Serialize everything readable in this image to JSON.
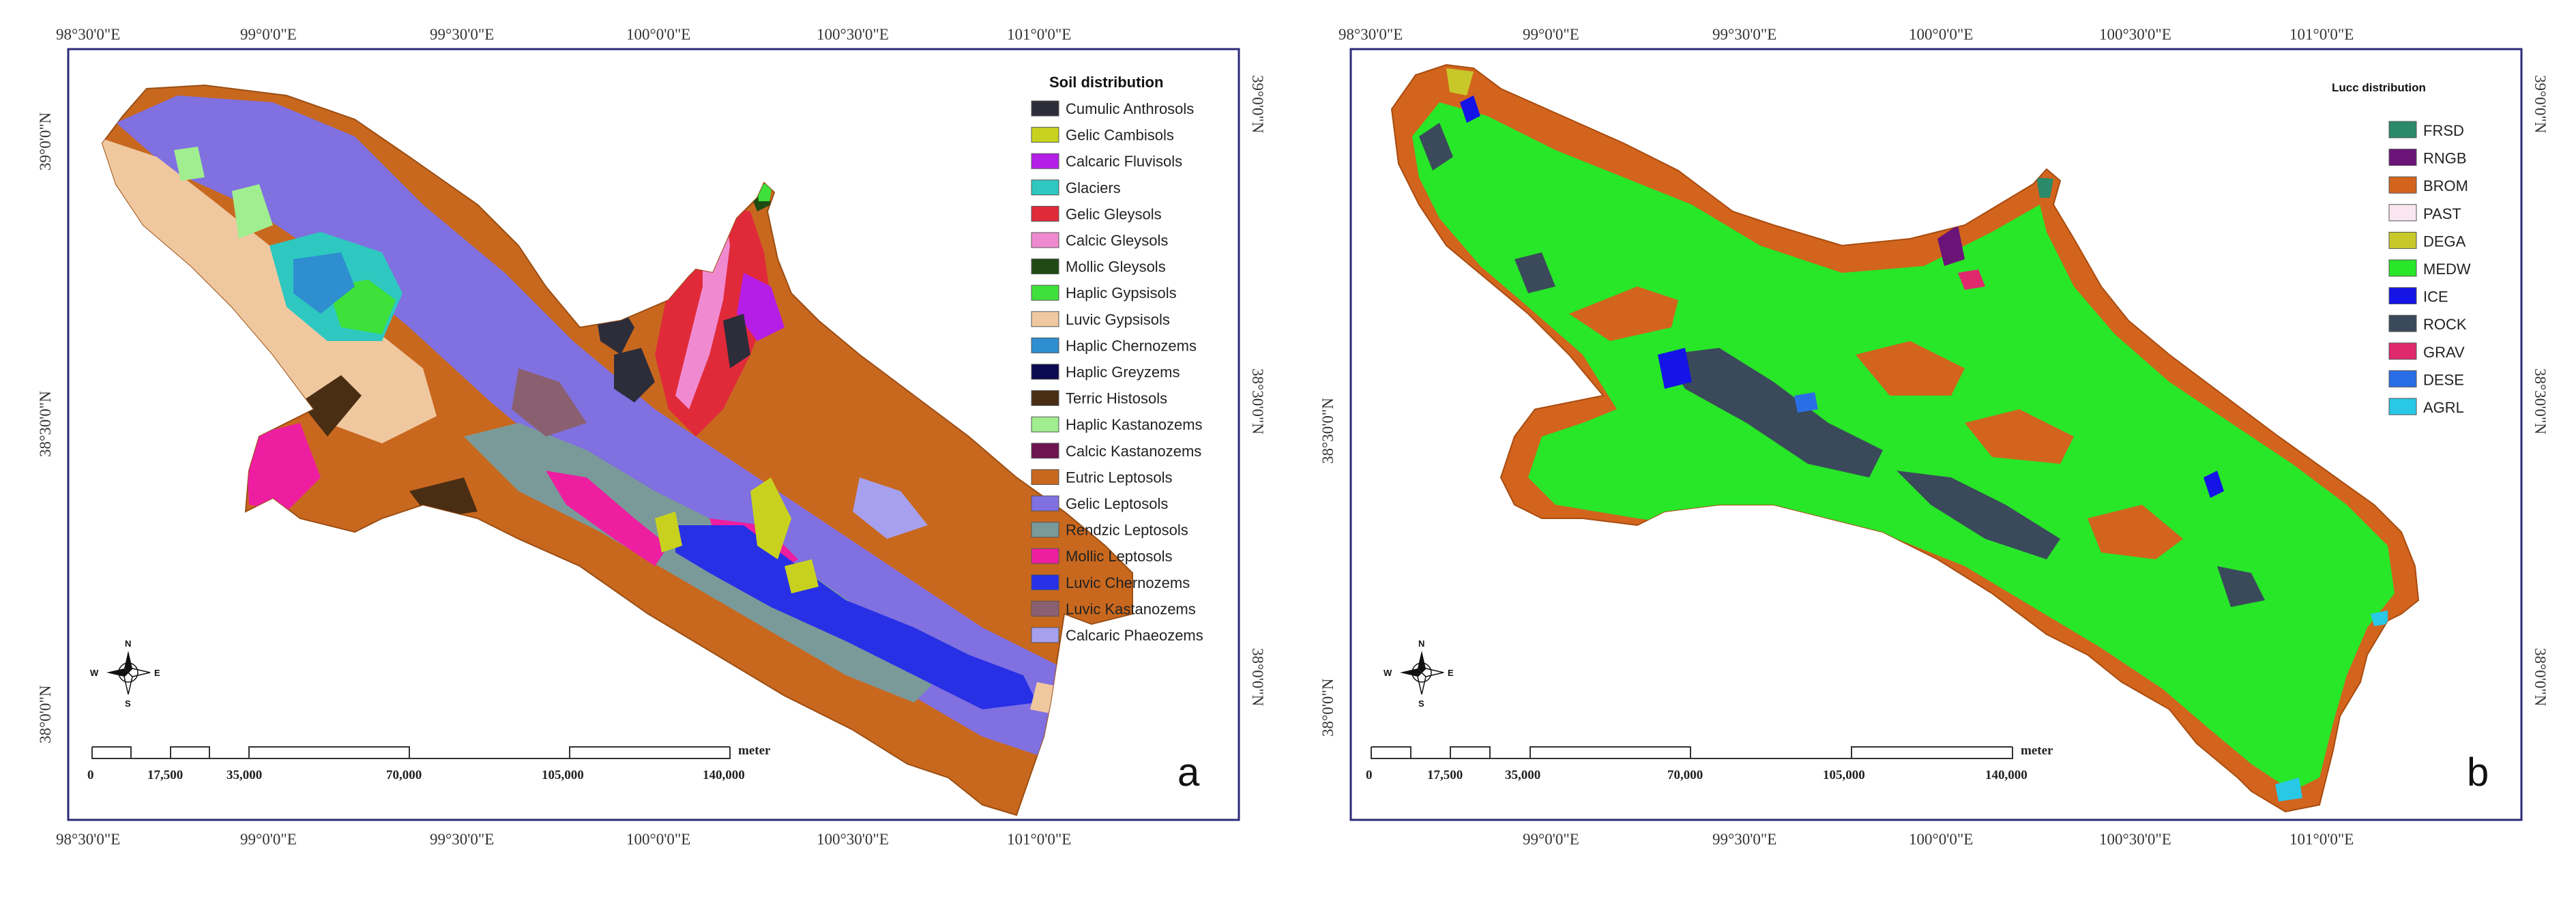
{
  "panel_a": {
    "letter": "a",
    "legend_title": "Soil distribution",
    "top_ticks": [
      "98°30'0\"E",
      "99°0'0\"E",
      "99°30'0\"E",
      "100°0'0\"E",
      "100°30'0\"E",
      "101°0'0\"E"
    ],
    "bottom_ticks": [
      "98°30'0\"E",
      "99°0'0\"E",
      "99°30'0\"E",
      "100°0'0\"E",
      "100°30'0\"E",
      "101°0'0\"E"
    ],
    "left_ticks": [
      "39°0'0\"N",
      "38°30'0\"N",
      "38°0'0\"N"
    ],
    "right_ticks": [
      "39°0'0\"N",
      "38°30'0\"N",
      "38°0'0\"N"
    ],
    "scale_labels": [
      "0",
      "17,500",
      "35,000",
      "70,000",
      "105,000",
      "140,000"
    ],
    "scale_unit": "meter",
    "compass": {
      "n": "N",
      "s": "S",
      "e": "E",
      "w": "W"
    },
    "legend": [
      {
        "label": "Cumulic Anthrosols",
        "color": "#2d2d3a"
      },
      {
        "label": "Gelic Cambisols",
        "color": "#c8d21e"
      },
      {
        "label": "Calcaric Fluvisols",
        "color": "#b41ee6"
      },
      {
        "label": "Glaciers",
        "color": "#2ec8c0"
      },
      {
        "label": "Gelic Gleysols",
        "color": "#e02a3a"
      },
      {
        "label": "Calcic Gleysols",
        "color": "#f08ad0"
      },
      {
        "label": "Mollic Gleysols",
        "color": "#1f4a14"
      },
      {
        "label": "Haplic Gypsisols",
        "color": "#3ee03a"
      },
      {
        "label": "Luvic Gypsisols",
        "color": "#f0c8a0"
      },
      {
        "label": "Haplic Chernozems",
        "color": "#2e8ed0"
      },
      {
        "label": "Haplic Greyzems",
        "color": "#0a0a50"
      },
      {
        "label": "Terric Histosols",
        "color": "#4a2e14"
      },
      {
        "label": "Haplic Kastanozems",
        "color": "#a0ee90"
      },
      {
        "label": "Calcic Kastanozems",
        "color": "#6e1450"
      },
      {
        "label": "Eutric Leptosols",
        "color": "#c8681e"
      },
      {
        "label": "Gelic Leptosols",
        "color": "#8070e0"
      },
      {
        "label": "Rendzic Leptosols",
        "color": "#7a9a9a"
      },
      {
        "label": "Mollic Leptosols",
        "color": "#ee1ea0"
      },
      {
        "label": "Luvic Chernozems",
        "color": "#2830e6"
      },
      {
        "label": "Luvic Kastanozems",
        "color": "#8a6070"
      },
      {
        "label": "Calcaric Phaeozems",
        "color": "#a6a0ee"
      }
    ]
  },
  "panel_b": {
    "letter": "b",
    "legend_title": "Lucc distribution",
    "top_ticks": [
      "98°30'0\"E",
      "99°0'0\"E",
      "99°30'0\"E",
      "100°0'0\"E",
      "100°30'0\"E",
      "101°0'0\"E"
    ],
    "bottom_ticks": [
      "99°0'0\"E",
      "99°30'0\"E",
      "100°0'0\"E",
      "100°30'0\"E",
      "101°0'0\"E"
    ],
    "left_ticks": [
      "38°30'0\"N",
      "38°0'0\"N"
    ],
    "right_ticks": [
      "39°0'0\"N",
      "38°30'0\"N",
      "38°0'0\"N"
    ],
    "scale_labels": [
      "0",
      "17,500",
      "35,000",
      "70,000",
      "105,000",
      "140,000"
    ],
    "scale_unit": "meter",
    "compass": {
      "n": "N",
      "s": "S",
      "e": "E",
      "w": "W"
    },
    "legend": [
      {
        "label": "FRSD",
        "color": "#2a8a6a"
      },
      {
        "label": "RNGB",
        "color": "#6a1478"
      },
      {
        "label": "BROM",
        "color": "#d2641e"
      },
      {
        "label": "PAST",
        "color": "#fae6f0"
      },
      {
        "label": "DEGA",
        "color": "#c8c82a"
      },
      {
        "label": "MEDW",
        "color": "#28e628"
      },
      {
        "label": "ICE",
        "color": "#1414e6"
      },
      {
        "label": "ROCK",
        "color": "#3a4a5a"
      },
      {
        "label": "GRAV",
        "color": "#e0286e"
      },
      {
        "label": "DESE",
        "color": "#2a6ee6"
      },
      {
        "label": "AGRL",
        "color": "#28c8e6"
      }
    ]
  }
}
